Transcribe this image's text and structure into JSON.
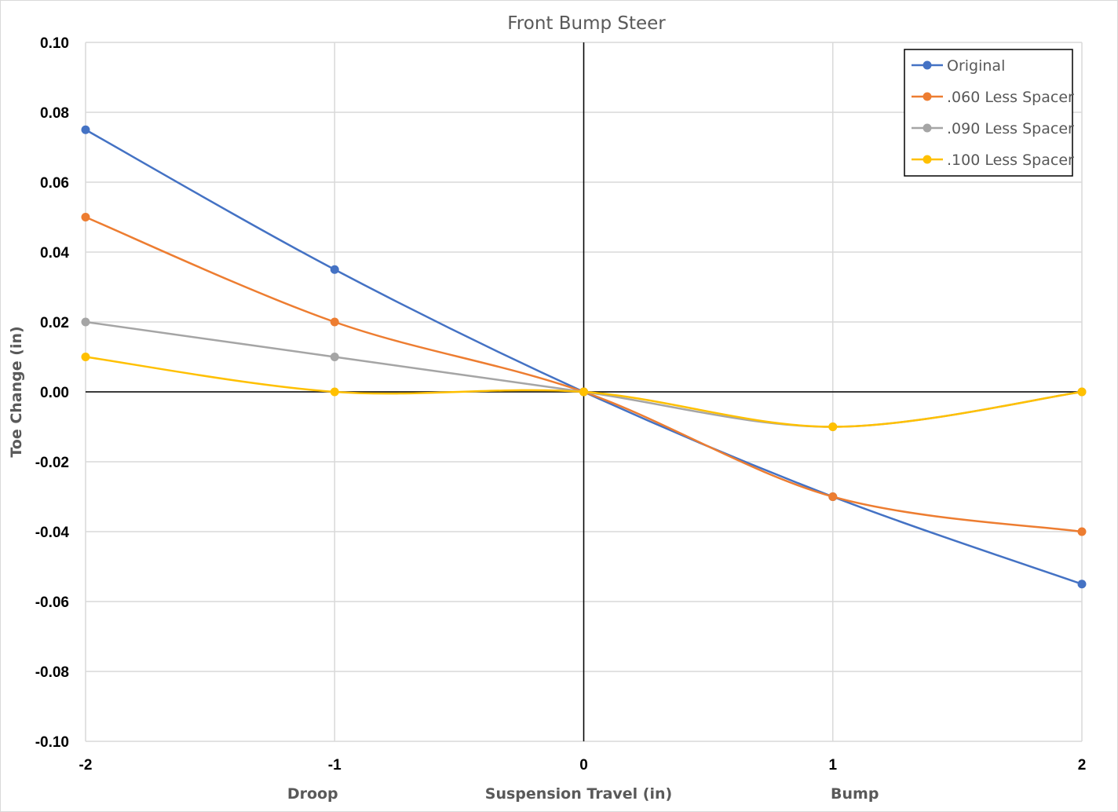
{
  "chart_data": {
    "type": "line",
    "title": "Front Bump Steer",
    "xlabel": "Suspension Travel (in)",
    "ylabel": "Toe Change (in)",
    "x_annotations": [
      {
        "text": "Droop",
        "x": -1
      },
      {
        "text": "Bump",
        "x": 1
      }
    ],
    "x": [
      -2,
      -1,
      0,
      1,
      2
    ],
    "x_tick_labels": [
      "-2",
      "-1",
      "0",
      "1",
      "2"
    ],
    "xlim": [
      -2,
      2
    ],
    "ylim": [
      -0.1,
      0.1
    ],
    "y_ticks": [
      0.1,
      0.08,
      0.06,
      0.04,
      0.02,
      0.0,
      -0.02,
      -0.04,
      -0.06,
      -0.08,
      -0.1
    ],
    "y_tick_labels": [
      "0.10",
      "0.08",
      "0.06",
      "0.04",
      "0.02",
      "0.00",
      "-0.02",
      "-0.04",
      "-0.06",
      "-0.08",
      "-0.10"
    ],
    "grid": true,
    "legend_position": "top-right",
    "series": [
      {
        "name": "Original",
        "color": "#4472C4",
        "values": [
          0.075,
          0.035,
          0.0,
          -0.03,
          -0.055
        ]
      },
      {
        "name": ".060 Less Spacer",
        "color": "#ED7D31",
        "values": [
          0.05,
          0.02,
          0.0,
          -0.03,
          -0.04
        ]
      },
      {
        "name": ".090 Less Spacer",
        "color": "#A5A5A5",
        "values": [
          0.02,
          0.01,
          0.0,
          -0.01,
          0.0
        ]
      },
      {
        "name": ".100 Less Spacer",
        "color": "#FFC000",
        "values": [
          0.01,
          0.0,
          0.0,
          -0.01,
          0.0
        ]
      }
    ]
  }
}
